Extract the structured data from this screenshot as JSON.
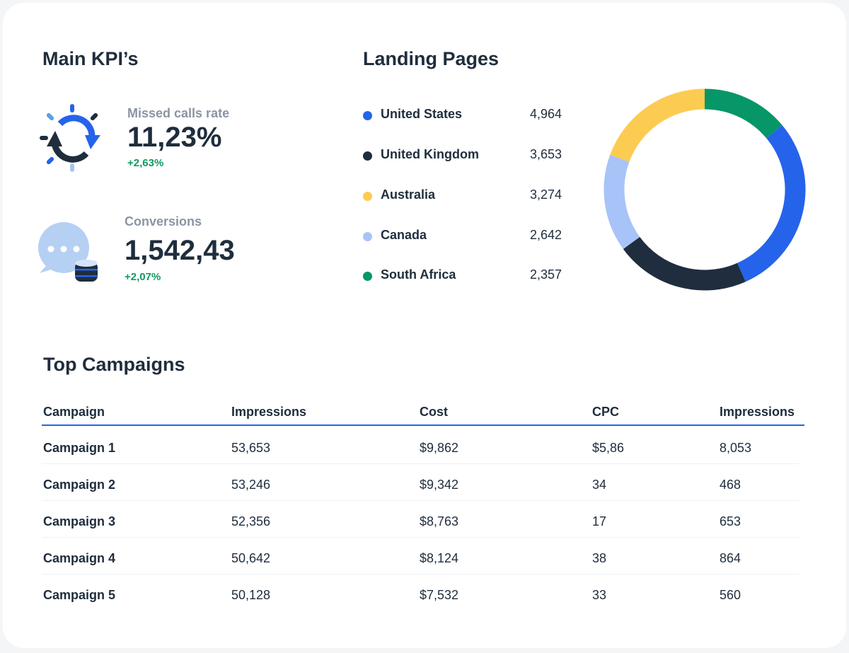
{
  "kpis": {
    "title": "Main KPI’s",
    "items": [
      {
        "label": "Missed calls rate",
        "value": "11,23%",
        "delta": "+2,63%",
        "icon": "refresh-cycle-icon"
      },
      {
        "label": "Conversions",
        "value": "1,542,43",
        "delta": "+2,07%",
        "icon": "chat-database-icon"
      }
    ]
  },
  "landing": {
    "title": "Landing Pages",
    "items": [
      {
        "name": "United States",
        "value": "4,964",
        "color": "#2563eb"
      },
      {
        "name": "United Kingdom",
        "value": "3,653",
        "color": "#1f2d3f"
      },
      {
        "name": "Australia",
        "value": "3,274",
        "color": "#fccb52"
      },
      {
        "name": "Canada",
        "value": "2,642",
        "color": "#a8c3f7"
      },
      {
        "name": "South Africa",
        "value": "2,357",
        "color": "#069667"
      }
    ]
  },
  "chart_data": {
    "type": "pie",
    "variant": "donut",
    "categories": [
      "United States",
      "United Kingdom",
      "Australia",
      "Canada",
      "South Africa"
    ],
    "values": [
      4964,
      3653,
      3274,
      2642,
      2357
    ],
    "colors": [
      "#2563eb",
      "#1f2d3f",
      "#fccb52",
      "#a8c3f7",
      "#069667"
    ],
    "clockwise_order_from_top": [
      "South Africa",
      "United States",
      "United Kingdom",
      "Canada",
      "Australia"
    ]
  },
  "campaigns": {
    "title": "Top Campaigns",
    "columns": [
      "Campaign",
      "Impressions",
      "Cost",
      "CPC",
      "Impressions"
    ],
    "rows": [
      [
        "Campaign 1",
        "53,653",
        "$9,862",
        "$5,86",
        "8,053"
      ],
      [
        "Campaign 2",
        "53,246",
        "$9,342",
        "34",
        "468"
      ],
      [
        "Campaign 3",
        "52,356",
        "$8,763",
        "17",
        "653"
      ],
      [
        "Campaign 4",
        "50,642",
        "$8,124",
        "38",
        "864"
      ],
      [
        "Campaign 5",
        "50,128",
        "$7,532",
        "33",
        "560"
      ]
    ]
  }
}
